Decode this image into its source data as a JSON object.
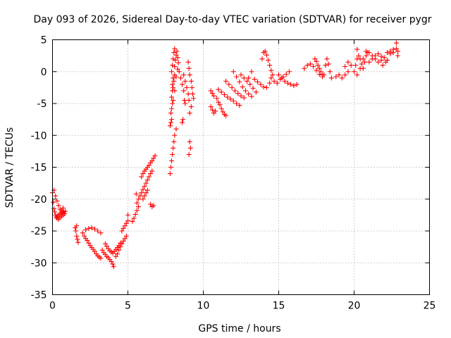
{
  "chart_data": {
    "type": "scatter",
    "title": "Day 093 of 2026, Sidereal Day-to-day VTEC variation (SDTVAR) for receiver pygr",
    "xlabel": "GPS time / hours",
    "ylabel": "SDTVAR / TECUs",
    "xlim": [
      0,
      25
    ],
    "ylim": [
      -35,
      5
    ],
    "xticks": [
      0,
      5,
      10,
      15,
      20,
      25
    ],
    "yticks": [
      5,
      0,
      -5,
      -10,
      -15,
      -20,
      -25,
      -30,
      -35
    ],
    "grid": true,
    "marker": "plus",
    "series_color": "#ff0000",
    "series": [
      {
        "name": "SDTVAR",
        "points": [
          [
            0.0,
            -19.0
          ],
          [
            0.05,
            -20.5
          ],
          [
            0.1,
            -21.5
          ],
          [
            0.15,
            -22.0
          ],
          [
            0.2,
            -22.5
          ],
          [
            0.25,
            -22.8
          ],
          [
            0.3,
            -23.0
          ],
          [
            0.35,
            -22.6
          ],
          [
            0.4,
            -23.2
          ],
          [
            0.45,
            -22.4
          ],
          [
            0.5,
            -22.9
          ],
          [
            0.55,
            -22.2
          ],
          [
            0.6,
            -22.7
          ],
          [
            0.65,
            -22.1
          ],
          [
            0.7,
            -22.5
          ],
          [
            0.75,
            -22.0
          ],
          [
            0.8,
            -22.3
          ],
          [
            0.85,
            -21.9
          ],
          [
            0.1,
            -18.6
          ],
          [
            0.2,
            -19.5
          ],
          [
            0.3,
            -20.3
          ],
          [
            0.4,
            -21.0
          ],
          [
            0.5,
            -21.6
          ],
          [
            0.6,
            -21.8
          ],
          [
            0.7,
            -21.4
          ],
          [
            1.5,
            -24.5
          ],
          [
            1.55,
            -25.0
          ],
          [
            1.6,
            -25.8
          ],
          [
            1.65,
            -26.3
          ],
          [
            1.7,
            -26.8
          ],
          [
            1.6,
            -24.2
          ],
          [
            2.0,
            -25.3
          ],
          [
            2.1,
            -25.8
          ],
          [
            2.2,
            -26.2
          ],
          [
            2.3,
            -26.5
          ],
          [
            2.4,
            -26.9
          ],
          [
            2.5,
            -27.3
          ],
          [
            2.6,
            -27.6
          ],
          [
            2.7,
            -27.9
          ],
          [
            2.8,
            -28.2
          ],
          [
            2.9,
            -28.6
          ],
          [
            3.0,
            -28.9
          ],
          [
            3.1,
            -29.1
          ],
          [
            3.2,
            -29.3
          ],
          [
            2.2,
            -24.8
          ],
          [
            2.4,
            -24.6
          ],
          [
            2.6,
            -24.5
          ],
          [
            2.8,
            -24.7
          ],
          [
            3.0,
            -25.0
          ],
          [
            3.2,
            -25.3
          ],
          [
            3.3,
            -28.0
          ],
          [
            3.4,
            -28.4
          ],
          [
            3.5,
            -28.7
          ],
          [
            3.6,
            -29.0
          ],
          [
            3.7,
            -29.2
          ],
          [
            3.8,
            -29.5
          ],
          [
            3.9,
            -29.8
          ],
          [
            4.0,
            -30.2
          ],
          [
            4.05,
            -30.6
          ],
          [
            3.5,
            -27.0
          ],
          [
            3.6,
            -27.4
          ],
          [
            3.7,
            -27.8
          ],
          [
            3.8,
            -28.1
          ],
          [
            3.9,
            -28.3
          ],
          [
            4.0,
            -28.5
          ],
          [
            4.1,
            -28.2
          ],
          [
            4.2,
            -27.9
          ],
          [
            4.3,
            -27.6
          ],
          [
            4.4,
            -27.3
          ],
          [
            4.5,
            -26.9
          ],
          [
            4.2,
            -29.0
          ],
          [
            4.3,
            -28.6
          ],
          [
            4.4,
            -28.0
          ],
          [
            4.5,
            -27.5
          ],
          [
            4.6,
            -27.0
          ],
          [
            4.7,
            -26.6
          ],
          [
            4.8,
            -26.2
          ],
          [
            4.9,
            -25.8
          ],
          [
            4.6,
            -25.0
          ],
          [
            4.7,
            -24.6
          ],
          [
            4.8,
            -24.2
          ],
          [
            4.9,
            -23.8
          ],
          [
            5.0,
            -23.4
          ],
          [
            5.0,
            -22.5
          ],
          [
            5.3,
            -23.5
          ],
          [
            5.4,
            -23.0
          ],
          [
            5.5,
            -22.4
          ],
          [
            5.6,
            -21.8
          ],
          [
            5.7,
            -21.2
          ],
          [
            5.6,
            -20.6
          ],
          [
            5.7,
            -20.0
          ],
          [
            5.55,
            -19.2
          ],
          [
            5.8,
            -19.5
          ],
          [
            5.9,
            -19.0
          ],
          [
            6.0,
            -18.5
          ],
          [
            6.1,
            -18.0
          ],
          [
            6.2,
            -17.5
          ],
          [
            6.3,
            -17.0
          ],
          [
            6.4,
            -16.5
          ],
          [
            6.5,
            -16.0
          ],
          [
            6.6,
            -15.6
          ],
          [
            5.9,
            -16.5
          ],
          [
            6.0,
            -16.0
          ],
          [
            6.1,
            -15.6
          ],
          [
            6.2,
            -15.3
          ],
          [
            6.3,
            -15.0
          ],
          [
            6.4,
            -14.7
          ],
          [
            6.5,
            -14.3
          ],
          [
            6.6,
            -14.0
          ],
          [
            6.7,
            -13.6
          ],
          [
            6.8,
            -13.2
          ],
          [
            6.0,
            -20.0
          ],
          [
            6.1,
            -19.5
          ],
          [
            6.2,
            -19.0
          ],
          [
            6.3,
            -18.6
          ],
          [
            6.5,
            -20.8
          ],
          [
            6.6,
            -21.2
          ],
          [
            6.7,
            -21.0
          ],
          [
            7.8,
            -16.0
          ],
          [
            7.85,
            -15.0
          ],
          [
            7.9,
            -14.0
          ],
          [
            7.95,
            -13.0
          ],
          [
            8.0,
            -12.0
          ],
          [
            8.05,
            -11.0
          ],
          [
            8.1,
            -10.0
          ],
          [
            8.2,
            -9.0
          ],
          [
            7.8,
            -8.5
          ],
          [
            7.85,
            -8.0
          ],
          [
            7.9,
            -7.5
          ],
          [
            7.85,
            -6.5
          ],
          [
            7.9,
            -5.8
          ],
          [
            7.95,
            -5.0
          ],
          [
            7.9,
            -4.0
          ],
          [
            7.95,
            -3.0
          ],
          [
            7.95,
            -2.0
          ],
          [
            8.0,
            -1.0
          ],
          [
            7.9,
            0.0
          ],
          [
            7.95,
            1.0
          ],
          [
            8.0,
            2.0
          ],
          [
            8.05,
            3.0
          ],
          [
            8.1,
            3.6
          ],
          [
            8.0,
            -2.5
          ],
          [
            8.05,
            -1.5
          ],
          [
            8.1,
            -0.5
          ],
          [
            8.1,
            0.8
          ],
          [
            8.15,
            1.8
          ],
          [
            8.2,
            2.6
          ],
          [
            8.25,
            3.2
          ],
          [
            8.3,
            2.2
          ],
          [
            8.35,
            1.4
          ],
          [
            8.3,
            0.4
          ],
          [
            8.2,
            -0.8
          ],
          [
            8.1,
            -3.0
          ],
          [
            8.0,
            -4.5
          ],
          [
            8.4,
            0.0
          ],
          [
            8.5,
            -1.0
          ],
          [
            8.6,
            -2.0
          ],
          [
            8.7,
            -3.0
          ],
          [
            8.75,
            -4.5
          ],
          [
            8.8,
            -5.0
          ],
          [
            8.65,
            -7.5
          ],
          [
            8.6,
            -8.0
          ],
          [
            8.7,
            -0.5
          ],
          [
            8.8,
            -1.5
          ],
          [
            8.9,
            -2.5
          ],
          [
            9.0,
            -3.5
          ],
          [
            9.05,
            -4.5
          ],
          [
            9.0,
            1.5
          ],
          [
            9.05,
            0.5
          ],
          [
            9.1,
            -0.5
          ],
          [
            9.2,
            -1.5
          ],
          [
            9.25,
            -2.5
          ],
          [
            9.3,
            -3.5
          ],
          [
            9.35,
            -4.2
          ],
          [
            9.2,
            -5.5
          ],
          [
            9.1,
            -6.5
          ],
          [
            9.1,
            -11.0
          ],
          [
            9.15,
            -12.0
          ],
          [
            9.05,
            -13.0
          ],
          [
            10.5,
            -5.5
          ],
          [
            10.6,
            -6.0
          ],
          [
            10.7,
            -6.5
          ],
          [
            10.8,
            -6.2
          ],
          [
            10.5,
            -3.0
          ],
          [
            10.6,
            -3.4
          ],
          [
            10.7,
            -3.8
          ],
          [
            10.9,
            -4.2
          ],
          [
            11.0,
            -4.8
          ],
          [
            11.1,
            -5.2
          ],
          [
            11.2,
            -5.8
          ],
          [
            11.3,
            -6.3
          ],
          [
            11.4,
            -6.7
          ],
          [
            11.5,
            -6.9
          ],
          [
            11.0,
            -2.8
          ],
          [
            11.2,
            -3.2
          ],
          [
            11.4,
            -3.6
          ],
          [
            11.6,
            -4.0
          ],
          [
            11.8,
            -4.3
          ],
          [
            12.0,
            -4.6
          ],
          [
            12.2,
            -5.0
          ],
          [
            12.4,
            -5.3
          ],
          [
            11.5,
            -1.5
          ],
          [
            11.7,
            -2.0
          ],
          [
            11.9,
            -2.5
          ],
          [
            12.1,
            -3.0
          ],
          [
            12.3,
            -3.4
          ],
          [
            12.5,
            -3.8
          ],
          [
            12.7,
            -4.1
          ],
          [
            12.0,
            0.0
          ],
          [
            12.2,
            -0.8
          ],
          [
            12.4,
            -1.6
          ],
          [
            12.6,
            -2.4
          ],
          [
            12.8,
            -3.0
          ],
          [
            13.0,
            -3.5
          ],
          [
            13.2,
            -3.9
          ],
          [
            12.5,
            -0.5
          ],
          [
            12.7,
            -1.0
          ],
          [
            12.9,
            -1.5
          ],
          [
            13.1,
            -2.0
          ],
          [
            13.3,
            -2.6
          ],
          [
            13.5,
            -3.2
          ],
          [
            13.4,
            -1.2
          ],
          [
            13.6,
            -1.6
          ],
          [
            13.8,
            -2.0
          ],
          [
            14.0,
            -2.4
          ],
          [
            13.2,
            0.0
          ],
          [
            13.0,
            -1.0
          ],
          [
            13.9,
            2.0
          ],
          [
            14.0,
            3.0
          ],
          [
            14.1,
            3.2
          ],
          [
            14.2,
            2.6
          ],
          [
            14.3,
            1.8
          ],
          [
            14.4,
            1.0
          ],
          [
            14.5,
            0.2
          ],
          [
            14.6,
            -0.5
          ],
          [
            14.4,
            -1.8
          ],
          [
            14.2,
            -2.5
          ],
          [
            14.5,
            -1.0
          ],
          [
            14.7,
            -1.5
          ],
          [
            14.9,
            -1.8
          ],
          [
            15.1,
            -1.2
          ],
          [
            15.3,
            -0.8
          ],
          [
            15.5,
            -0.4
          ],
          [
            15.7,
            0.0
          ],
          [
            15.0,
            -0.5
          ],
          [
            15.2,
            -1.0
          ],
          [
            15.4,
            -1.5
          ],
          [
            15.6,
            -1.8
          ],
          [
            15.8,
            -2.0
          ],
          [
            16.0,
            -2.2
          ],
          [
            16.2,
            -2.0
          ],
          [
            16.7,
            0.5
          ],
          [
            16.9,
            1.0
          ],
          [
            17.1,
            1.2
          ],
          [
            17.3,
            0.8
          ],
          [
            17.5,
            0.2
          ],
          [
            17.7,
            -0.4
          ],
          [
            17.9,
            -0.8
          ],
          [
            17.4,
            2.0
          ],
          [
            17.5,
            1.6
          ],
          [
            17.6,
            1.0
          ],
          [
            17.7,
            0.5
          ],
          [
            17.8,
            0.0
          ],
          [
            17.9,
            -0.5
          ],
          [
            18.0,
            -0.5
          ],
          [
            18.1,
            1.0
          ],
          [
            18.2,
            2.0
          ],
          [
            18.3,
            1.2
          ],
          [
            18.4,
            0.0
          ],
          [
            18.5,
            -1.0
          ],
          [
            18.8,
            -0.8
          ],
          [
            19.0,
            -0.5
          ],
          [
            19.2,
            -1.0
          ],
          [
            19.4,
            -0.5
          ],
          [
            19.6,
            0.0
          ],
          [
            19.8,
            1.0
          ],
          [
            19.6,
            1.5
          ],
          [
            19.4,
            0.8
          ],
          [
            20.0,
            0.0
          ],
          [
            20.1,
            1.0
          ],
          [
            20.2,
            2.0
          ],
          [
            20.3,
            2.5
          ],
          [
            20.4,
            2.0
          ],
          [
            20.5,
            1.2
          ],
          [
            20.6,
            0.5
          ],
          [
            20.7,
            1.5
          ],
          [
            20.8,
            2.5
          ],
          [
            20.9,
            3.0
          ],
          [
            20.2,
            -0.5
          ],
          [
            20.4,
            0.5
          ],
          [
            20.6,
            2.0
          ],
          [
            20.8,
            3.2
          ],
          [
            21.0,
            3.0
          ],
          [
            21.2,
            2.5
          ],
          [
            21.4,
            2.0
          ],
          [
            21.6,
            1.5
          ],
          [
            21.8,
            1.8
          ],
          [
            22.0,
            2.2
          ],
          [
            21.0,
            1.5
          ],
          [
            21.2,
            2.0
          ],
          [
            21.4,
            2.5
          ],
          [
            21.6,
            2.8
          ],
          [
            21.8,
            2.4
          ],
          [
            20.2,
            3.5
          ],
          [
            21.9,
            1.0
          ],
          [
            22.1,
            1.5
          ],
          [
            22.2,
            1.8
          ],
          [
            22.2,
            3.0
          ],
          [
            22.4,
            3.2
          ],
          [
            22.6,
            3.5
          ],
          [
            22.8,
            3.6
          ],
          [
            22.9,
            3.2
          ],
          [
            22.6,
            3.0
          ],
          [
            22.4,
            2.8
          ],
          [
            22.8,
            4.5
          ],
          [
            22.9,
            2.5
          ]
        ]
      }
    ]
  }
}
